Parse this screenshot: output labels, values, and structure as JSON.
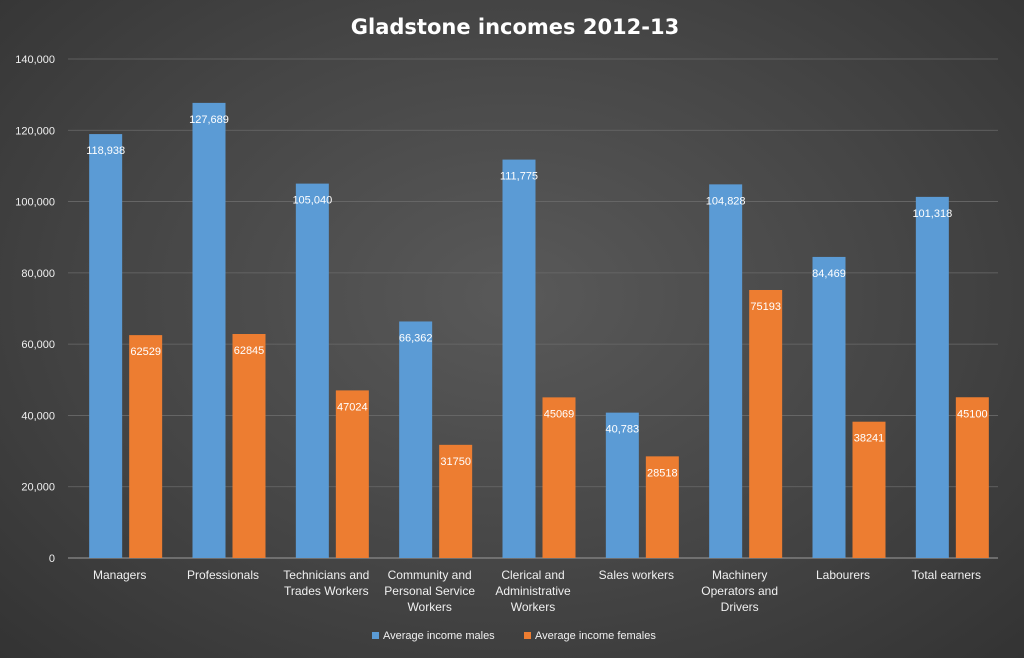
{
  "chart_data": {
    "type": "bar",
    "title": "Gladstone incomes 2012-13",
    "categories": [
      [
        "Managers"
      ],
      [
        "Professionals"
      ],
      [
        "Technicians and",
        "Trades Workers"
      ],
      [
        "Community and",
        "Personal Service",
        "Workers"
      ],
      [
        "Clerical and",
        "Administrative",
        "Workers"
      ],
      [
        "Sales workers"
      ],
      [
        "Machinery",
        "Operators and",
        "Drivers"
      ],
      [
        "Labourers"
      ],
      [
        "Total earners"
      ]
    ],
    "series": [
      {
        "name": "Average income males",
        "color": "#5b9bd5",
        "values": [
          118938,
          127689,
          105040,
          66362,
          111775,
          40783,
          104828,
          84469,
          101318
        ],
        "labels": [
          "118,938",
          "127,689",
          "105,040",
          "66,362",
          "111,775",
          "40,783",
          "104,828",
          "84,469",
          "101,318"
        ]
      },
      {
        "name": "Average income females",
        "color": "#ed7d31",
        "values": [
          62529,
          62845,
          47024,
          31750,
          45069,
          28518,
          75193,
          38241,
          45100
        ],
        "labels": [
          "62529",
          "62845",
          "47024",
          "31750",
          "45069",
          "28518",
          "75193",
          "38241",
          "45100"
        ]
      }
    ],
    "ylim": [
      0,
      140000
    ],
    "yticks": [
      0,
      20000,
      40000,
      60000,
      80000,
      100000,
      120000,
      140000
    ],
    "ytick_labels": [
      "0",
      "20,000",
      "40,000",
      "60,000",
      "80,000",
      "100,000",
      "120,000",
      "140,000"
    ],
    "grid": true,
    "legend_position": "bottom"
  }
}
